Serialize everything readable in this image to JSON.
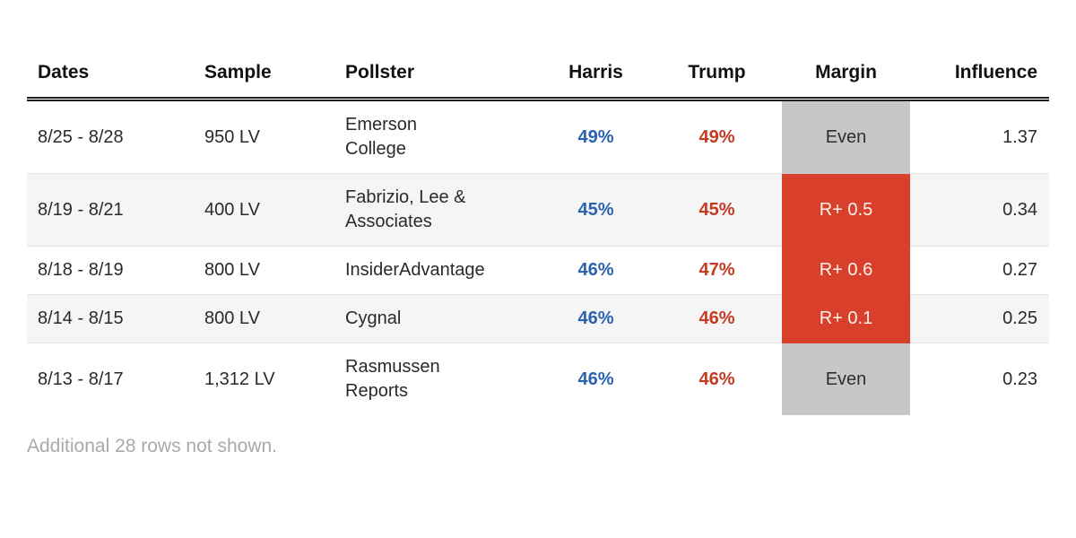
{
  "chart_data": {
    "type": "table",
    "columns": [
      "Dates",
      "Sample",
      "Pollster",
      "Harris",
      "Trump",
      "Margin",
      "Influence"
    ],
    "rows": [
      {
        "dates": "8/25 - 8/28",
        "sample": "950 LV",
        "pollster": "Emerson College",
        "harris": "49%",
        "trump": "49%",
        "margin": "Even",
        "margin_type": "even",
        "influence": "1.37"
      },
      {
        "dates": "8/19 - 8/21",
        "sample": "400 LV",
        "pollster": "Fabrizio, Lee & Associates",
        "harris": "45%",
        "trump": "45%",
        "margin": "R+ 0.5",
        "margin_type": "rep",
        "influence": "0.34"
      },
      {
        "dates": "8/18 - 8/19",
        "sample": "800 LV",
        "pollster": "InsiderAdvantage",
        "harris": "46%",
        "trump": "47%",
        "margin": "R+ 0.6",
        "margin_type": "rep",
        "influence": "0.27"
      },
      {
        "dates": "8/14 - 8/15",
        "sample": "800 LV",
        "pollster": "Cygnal",
        "harris": "46%",
        "trump": "46%",
        "margin": "R+ 0.1",
        "margin_type": "rep",
        "influence": "0.25"
      },
      {
        "dates": "8/13 - 8/17",
        "sample": "1,312 LV",
        "pollster": "Rasmussen Reports",
        "harris": "46%",
        "trump": "46%",
        "margin": "Even",
        "margin_type": "even",
        "influence": "0.23"
      }
    ],
    "footer_note": "Additional 28 rows not shown.",
    "layout_hints": {
      "margin_even_cells_highlighted": true,
      "margin_rep_cells_highlighted": true,
      "alternating_row_shading": true
    }
  },
  "colors": {
    "harris_text": "#2b62af",
    "trump_text": "#c53a22",
    "margin_rep_bg": "#d8402b",
    "margin_rep_text": "#fcf0ed",
    "margin_even_bg": "#c7c7c7",
    "margin_even_text": "#2e2e2e",
    "row_alt_bg": "#f5f5f5",
    "row_divider": "#e3e3e3",
    "header_rule": "#212121",
    "footer_text": "#a9a9a9"
  }
}
